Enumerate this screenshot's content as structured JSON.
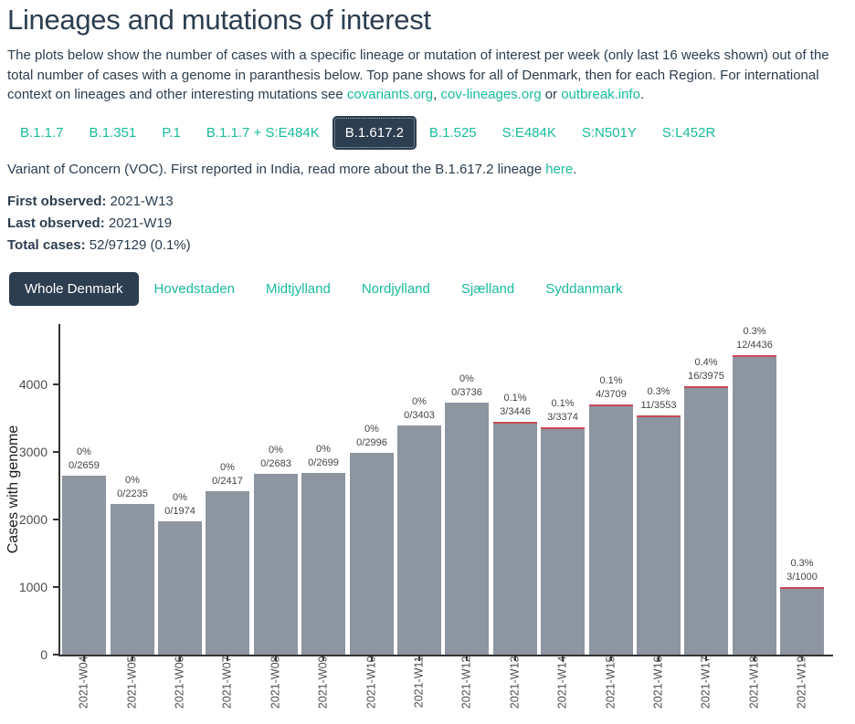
{
  "header": {
    "title": "Lineages and mutations of interest",
    "intro": {
      "text": "The plots below show the number of cases with a specific lineage or mutation of interest per week (only last 16 weeks shown) out of the total number of cases with a genome in paranthesis below. Top pane shows for all of Denmark, then for each Region. For international context on lineages and other interesting mutations see ",
      "link1": "covariants.org",
      "sep1": ", ",
      "link2": "cov-lineages.org",
      "sep2": " or ",
      "link3": "outbreak.info",
      "period": "."
    }
  },
  "lineage_tabs": [
    {
      "label": "B.1.1.7",
      "selected": false
    },
    {
      "label": "B.1.351",
      "selected": false
    },
    {
      "label": "P.1",
      "selected": false
    },
    {
      "label": "B.1.1.7 + S:E484K",
      "selected": false
    },
    {
      "label": "B.1.617.2",
      "selected": true
    },
    {
      "label": "B.1.525",
      "selected": false
    },
    {
      "label": "S:E484K",
      "selected": false
    },
    {
      "label": "S:N501Y",
      "selected": false
    },
    {
      "label": "S:L452R",
      "selected": false
    }
  ],
  "variant_info": {
    "description": "Variant of Concern (VOC). First reported in India, read more about the B.1.617.2 lineage ",
    "link": "here",
    "period": ".",
    "first_observed_label": "First observed:",
    "first_observed_value": " 2021-W13",
    "last_observed_label": "Last observed:",
    "last_observed_value": " 2021-W19",
    "total_cases_label": "Total cases:",
    "total_cases_value": " 52/97129 (0.1%)"
  },
  "region_tabs": [
    {
      "label": "Whole Denmark",
      "selected": true
    },
    {
      "label": "Hovedstaden",
      "selected": false
    },
    {
      "label": "Midtjylland",
      "selected": false
    },
    {
      "label": "Nordjylland",
      "selected": false
    },
    {
      "label": "Sjælland",
      "selected": false
    },
    {
      "label": "Syddanmark",
      "selected": false
    }
  ],
  "chart_data": {
    "type": "bar",
    "stacked": true,
    "title": "",
    "xlabel": "",
    "ylabel": "Cases with genome",
    "categories": [
      "2021-W04",
      "2021-W05",
      "2021-W06",
      "2021-W07",
      "2021-W08",
      "2021-W09",
      "2021-W10",
      "2021-W11",
      "2021-W12",
      "2021-W13",
      "2021-W14",
      "2021-W15",
      "2021-W16",
      "2021-W17",
      "2021-W18",
      "2021-W19"
    ],
    "series": [
      {
        "name": "B.1.617.2 cases",
        "values": [
          0,
          0,
          0,
          0,
          0,
          0,
          0,
          0,
          0,
          3,
          3,
          4,
          11,
          16,
          12,
          3
        ]
      },
      {
        "name": "Total cases with genome",
        "values": [
          2659,
          2235,
          1974,
          2417,
          2683,
          2699,
          2996,
          3403,
          3736,
          3446,
          3374,
          3709,
          3553,
          3975,
          4436,
          1000
        ]
      }
    ],
    "totals": [
      2659,
      2235,
      1974,
      2417,
      2683,
      2699,
      2996,
      3403,
      3736,
      3446,
      3374,
      3709,
      3553,
      3975,
      4436,
      1000
    ],
    "bar_labels_pct": [
      "0%",
      "0%",
      "0%",
      "0%",
      "0%",
      "0%",
      "0%",
      "0%",
      "0%",
      "0.1%",
      "0.1%",
      "0.1%",
      "0.3%",
      "0.4%",
      "0.3%",
      "0.3%"
    ],
    "bar_labels_frac": [
      "0/2659",
      "0/2235",
      "0/1974",
      "0/2417",
      "0/2683",
      "0/2699",
      "0/2996",
      "0/3403",
      "0/3736",
      "3/3446",
      "3/3374",
      "4/3709",
      "11/3553",
      "16/3975",
      "12/4436",
      "3/1000"
    ],
    "yticks": [
      0,
      1000,
      2000,
      3000,
      4000
    ],
    "ylim": [
      0,
      4900
    ],
    "grid": false,
    "legend": "none"
  },
  "colors": {
    "accent_dark": "#2c3e50",
    "link_teal": "#18bc9c",
    "bar_gray": "#8d95a0",
    "bar_red": "#cb4959",
    "axis": "#333333",
    "tick_label": "#4d4d4d",
    "annotation": "#444444"
  }
}
